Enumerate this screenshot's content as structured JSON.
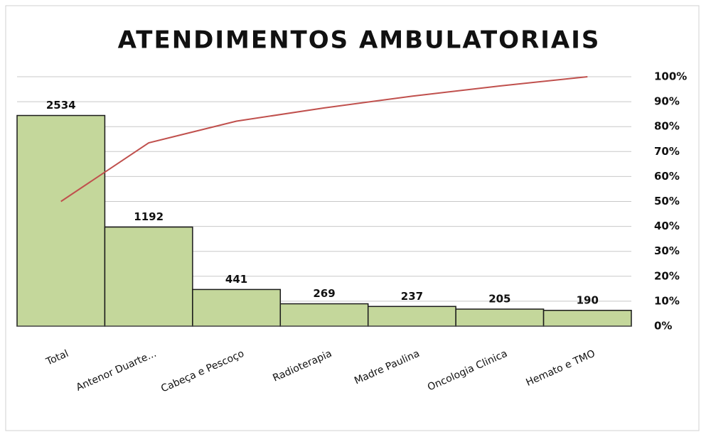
{
  "chart_data": {
    "type": "pareto",
    "title": "ATENDIMENTOS AMBULATORIAIS",
    "categories": [
      "Total",
      "Antenor Duarte...",
      "Cabeça e Pescoço",
      "Radioterapia",
      "Madre Paulina",
      "Oncologia Clinica",
      "Hemato e TMO"
    ],
    "series": [
      {
        "color": "#c4d79b",
        "values": [
          2534,
          1192,
          441,
          269,
          237,
          205,
          190
        ]
      },
      {
        "color": "#c0504d",
        "axis": "y2",
        "values": [
          50,
          73.5,
          82.2,
          87.5,
          92.2,
          96.3,
          100
        ]
      }
    ],
    "ylim": [
      0,
      3000
    ],
    "y2lim": [
      0,
      100
    ],
    "y2ticks": [
      {
        "value": 0,
        "label": "0%"
      },
      {
        "value": 10,
        "label": "10%"
      },
      {
        "value": 20,
        "label": "20%"
      },
      {
        "value": 30,
        "label": "30%"
      },
      {
        "value": 40,
        "label": "40%"
      },
      {
        "value": 50,
        "label": "50%"
      },
      {
        "value": 60,
        "label": "60%"
      },
      {
        "value": 70,
        "label": "70%"
      },
      {
        "value": 80,
        "label": "80%"
      },
      {
        "value": 90,
        "label": "90%"
      },
      {
        "value": 100,
        "label": "100%"
      }
    ],
    "grid": true
  }
}
